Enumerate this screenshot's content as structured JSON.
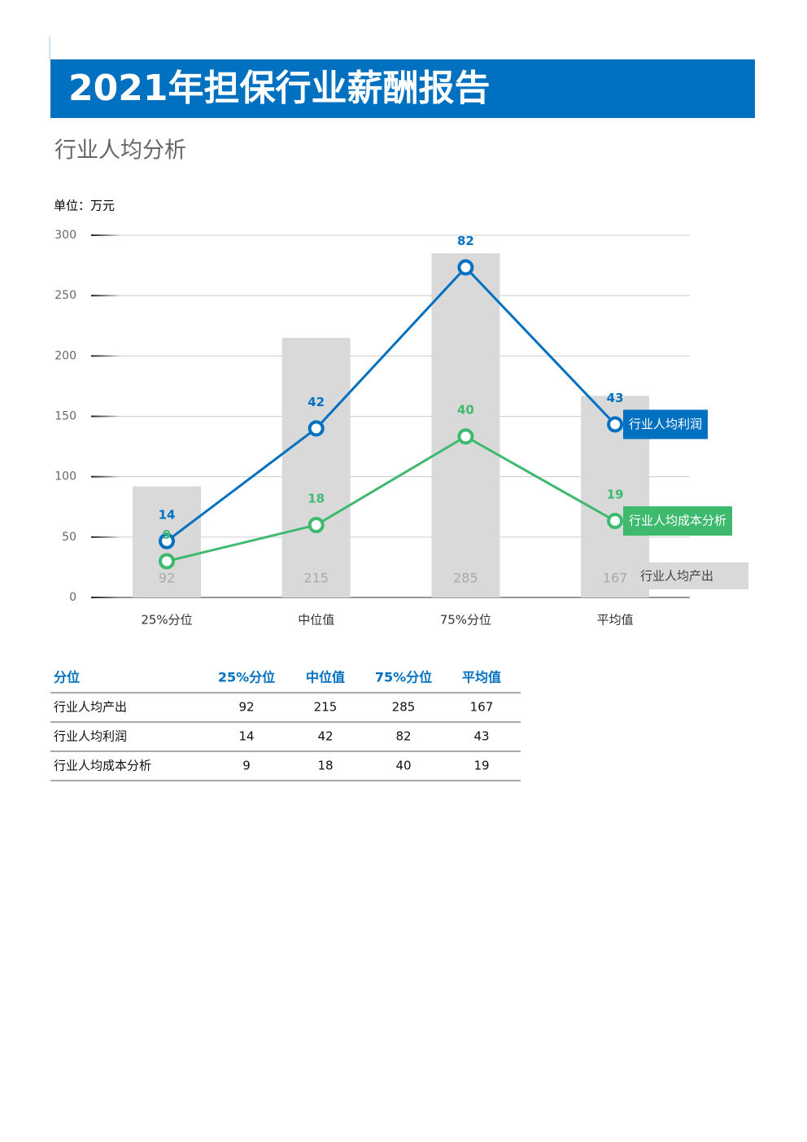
{
  "header": {
    "title": "2021年担保行业薪酬报告",
    "section": "行业人均分析"
  },
  "chart_data": {
    "type": "combo",
    "unit": "单位：万元",
    "categories": [
      "25%分位",
      "中位值",
      "75%分位",
      "平均值"
    ],
    "ylim": [
      0,
      300
    ],
    "yticks": [
      0,
      50,
      100,
      150,
      200,
      250,
      300
    ],
    "y2lim": [
      0,
      90
    ],
    "grid": true,
    "series": [
      {
        "name": "行业人均产出",
        "type": "bar",
        "color": "#d9d9d9",
        "values": [
          92,
          215,
          285,
          167
        ]
      },
      {
        "name": "行业人均利润",
        "type": "line",
        "axis": "y2",
        "color": "#0070c0",
        "values": [
          14,
          42,
          82,
          43
        ]
      },
      {
        "name": "行业人均成本分析",
        "type": "line",
        "axis": "y2",
        "color": "#3dba6e",
        "values": [
          9,
          18,
          40,
          19
        ]
      }
    ]
  },
  "table": {
    "header": [
      "分位",
      "25%分位",
      "中位值",
      "75%分位",
      "平均值"
    ],
    "rows": [
      [
        "行业人均产出",
        92,
        215,
        285,
        167
      ],
      [
        "行业人均利润",
        14,
        42,
        82,
        43
      ],
      [
        "行业人均成本分析",
        9,
        18,
        40,
        19
      ]
    ]
  }
}
